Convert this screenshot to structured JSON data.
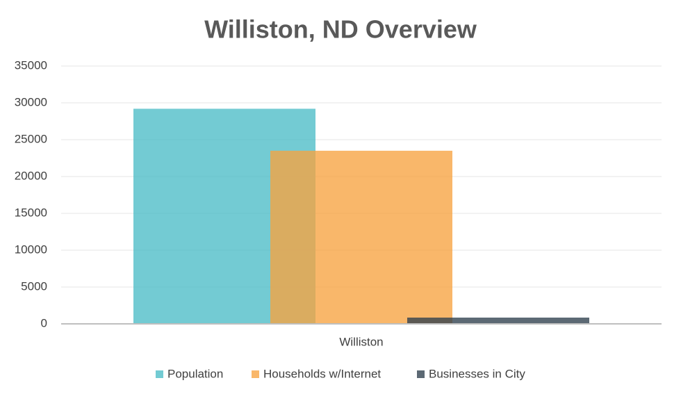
{
  "chart_data": {
    "type": "bar",
    "title": "Williston, ND Overview",
    "categories": [
      "Williston"
    ],
    "series": [
      {
        "name": "Population",
        "color": "#4bbcc6",
        "values": [
          29200
        ]
      },
      {
        "name": "Households w/Internet",
        "color": "#f7a340",
        "values": [
          23500
        ]
      },
      {
        "name": "Businesses in City",
        "color": "#2e3f4d",
        "values": [
          850
        ]
      }
    ],
    "ylim": [
      0,
      35000
    ],
    "yticks": [
      0,
      5000,
      10000,
      15000,
      20000,
      25000,
      30000,
      35000
    ],
    "grid": true,
    "legend": "bottom"
  }
}
